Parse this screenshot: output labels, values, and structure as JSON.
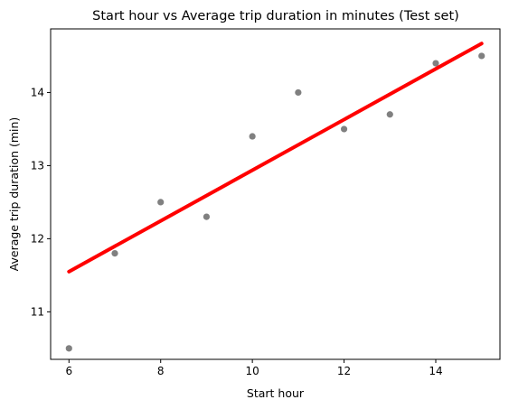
{
  "chart_data": {
    "type": "scatter",
    "title": "Start hour vs Average trip duration in minutes (Test set)",
    "xlabel": "Start hour",
    "ylabel": "Average trip duration (min)",
    "xlim": [
      5.6,
      15.4
    ],
    "ylim": [
      10.35,
      14.87
    ],
    "xticks": [
      6,
      8,
      10,
      12,
      14
    ],
    "yticks": [
      11,
      12,
      13,
      14
    ],
    "grid": false,
    "legend": "none",
    "series": [
      {
        "type": "scatter",
        "color": "#808080",
        "points": [
          {
            "x": 6,
            "y": 10.5
          },
          {
            "x": 7,
            "y": 11.8
          },
          {
            "x": 8,
            "y": 12.5
          },
          {
            "x": 9,
            "y": 12.3
          },
          {
            "x": 10,
            "y": 13.4
          },
          {
            "x": 11,
            "y": 14.0
          },
          {
            "x": 12,
            "y": 13.5
          },
          {
            "x": 13,
            "y": 13.7
          },
          {
            "x": 14,
            "y": 14.4
          },
          {
            "x": 15,
            "y": 14.5
          }
        ]
      },
      {
        "type": "line",
        "color": "#ff0000",
        "points": [
          {
            "x": 6,
            "y": 11.55
          },
          {
            "x": 15,
            "y": 14.67
          }
        ]
      }
    ]
  }
}
